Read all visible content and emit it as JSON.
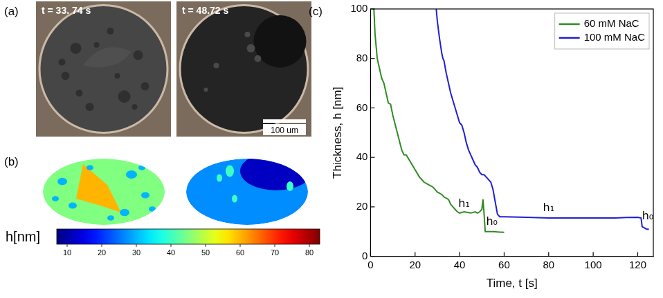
{
  "panel_a": {
    "label": "(a)",
    "images": [
      {
        "time_label": "t = 33. 74 s"
      },
      {
        "time_label": "t = 48.72 s"
      }
    ],
    "scale_bar": "100 um"
  },
  "panel_b": {
    "label": "(b)",
    "maps": [
      {
        "background_h": 45,
        "feature_h": [
          60,
          30
        ]
      },
      {
        "background_h": 27,
        "feature_h": [
          12,
          40
        ]
      }
    ],
    "colorbar": {
      "label": "h[nm]",
      "range": [
        7,
        83
      ],
      "ticks": [
        10,
        20,
        30,
        40,
        50,
        60,
        70,
        80
      ]
    }
  },
  "chart_data": {
    "panel_label": "(c)",
    "type": "line",
    "x_label": "Time, t [s]",
    "y_label": "Thickness, h [nm]",
    "xlim": [
      0,
      127
    ],
    "xticks": [
      0,
      20,
      40,
      60,
      80,
      100,
      120
    ],
    "ylim": [
      0,
      100
    ],
    "yticks": [
      0,
      20,
      40,
      60,
      80,
      100
    ],
    "grid": false,
    "legend": "upper right",
    "series": [
      {
        "name": "60 mM NaC",
        "color": "#2e8b22",
        "x": [
          1.5,
          2,
          3,
          4,
          5,
          6,
          7,
          8,
          9,
          10,
          12,
          14,
          15,
          16,
          18,
          20,
          22,
          24,
          26,
          28,
          30,
          32,
          33,
          35,
          36,
          38,
          39,
          40,
          42,
          45,
          47,
          48,
          49,
          50,
          50.5,
          51,
          51.5,
          53,
          55,
          58,
          60
        ],
        "values": [
          100,
          90,
          80,
          76,
          72,
          70,
          66,
          62,
          61.5,
          57,
          50,
          43,
          41,
          41,
          38,
          35,
          32,
          30,
          29,
          28,
          26,
          25,
          24,
          23,
          21,
          19,
          18,
          17.5,
          18,
          17.5,
          18,
          17.5,
          18,
          19,
          23,
          17,
          10,
          10,
          10,
          9.8,
          9.7
        ]
      },
      {
        "name": "100 mM NaC",
        "color": "#1f1fd6",
        "x": [
          29.5,
          30,
          31,
          32,
          32.5,
          33,
          34,
          35,
          36,
          37,
          38,
          39,
          40,
          41,
          42,
          43,
          44,
          45,
          46,
          47,
          48,
          49,
          50,
          51,
          52,
          53,
          54,
          55,
          56,
          57,
          58,
          60,
          70,
          80,
          90,
          100,
          110,
          115,
          120,
          121.5,
          122,
          123,
          124,
          125
        ],
        "values": [
          100,
          95,
          88,
          82,
          80,
          79,
          74,
          70,
          66,
          63,
          60,
          57,
          54,
          53,
          50,
          46,
          43,
          41,
          39,
          37,
          36,
          34,
          33,
          33,
          32,
          31,
          30,
          27,
          22,
          17,
          16,
          16,
          15.8,
          15.5,
          15.5,
          15.5,
          15.5,
          15.7,
          15.8,
          15.5,
          12,
          11.5,
          11,
          11
        ]
      }
    ],
    "annotations": [
      {
        "text": "h₁",
        "x": 42,
        "y": 21
      },
      {
        "text": "h₀",
        "x": 54.5,
        "y": 14
      },
      {
        "text": "h₁",
        "x": 80,
        "y": 19.5
      },
      {
        "text": "h₀",
        "x": 124.5,
        "y": 16
      }
    ]
  }
}
